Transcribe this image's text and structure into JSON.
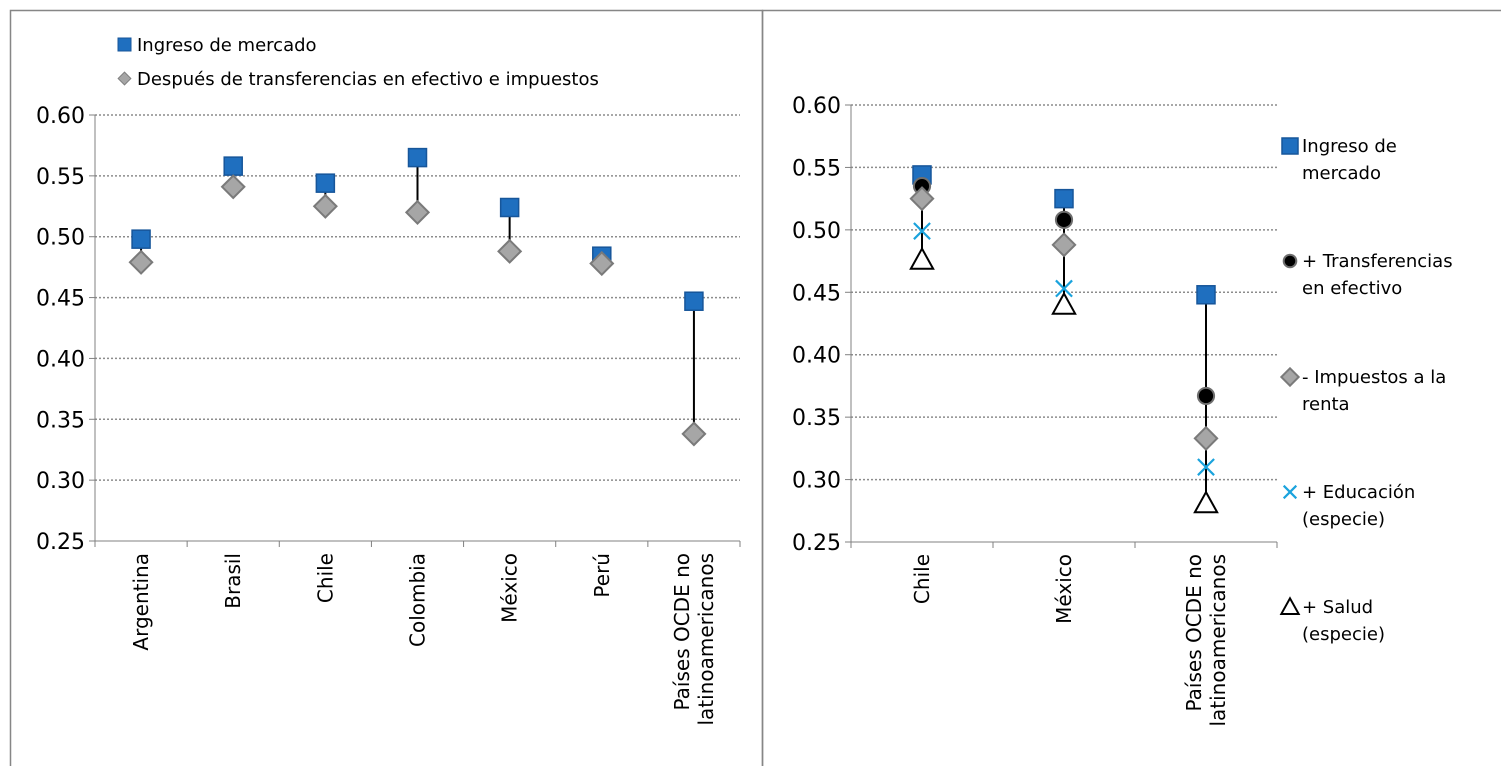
{
  "chart_data": [
    {
      "type": "scatter",
      "title": "",
      "xlabel": "",
      "ylabel": "",
      "ylim": [
        0.25,
        0.6
      ],
      "yticks": [
        "0.60",
        "0.55",
        "0.50",
        "0.45",
        "0.40",
        "0.35",
        "0.30",
        "0.25"
      ],
      "grid": true,
      "legend_position": "top-left",
      "categories": [
        "Argentina",
        "Brasil",
        "Chile",
        "Colombia",
        "México",
        "Perú",
        "Países OCDE no latinoamericanos"
      ],
      "category_lines": [
        [
          "Argentina"
        ],
        [
          "Brasil"
        ],
        [
          "Chile"
        ],
        [
          "Colombia"
        ],
        [
          "México"
        ],
        [
          "Perú"
        ],
        [
          "Países OCDE no",
          "latinoamericanos"
        ]
      ],
      "series": [
        {
          "name": "Ingreso de mercado",
          "marker": "square",
          "color": "#1f6fbf",
          "values": [
            0.498,
            0.558,
            0.544,
            0.565,
            0.524,
            0.484,
            0.447
          ]
        },
        {
          "name": "Después de transferencias en efectivo e impuestos",
          "marker": "diamond",
          "color": "#a6a6a6",
          "values": [
            0.479,
            0.541,
            0.525,
            0.52,
            0.488,
            0.478,
            0.338
          ]
        }
      ]
    },
    {
      "type": "scatter",
      "title": "",
      "xlabel": "",
      "ylabel": "",
      "ylim": [
        0.25,
        0.6
      ],
      "yticks": [
        "0.60",
        "0.55",
        "0.50",
        "0.45",
        "0.40",
        "0.35",
        "0.30",
        "0.25"
      ],
      "grid": true,
      "legend_position": "right",
      "categories": [
        "Chile",
        "México",
        "Países OCDE no latinoamericanos"
      ],
      "category_lines": [
        [
          "Chile"
        ],
        [
          "México"
        ],
        [
          "Países OCDE no",
          "latinoamericanos"
        ]
      ],
      "series": [
        {
          "name": "Ingreso de mercado",
          "legend_lines": [
            "Ingreso de",
            "mercado"
          ],
          "marker": "square",
          "color": "#1f6fbf",
          "values": [
            0.544,
            0.525,
            0.448
          ]
        },
        {
          "name": "+ Transferencias en efectivo",
          "legend_lines": [
            "+ Transferencias",
            "en efectivo"
          ],
          "marker": "circle",
          "color": "#000000",
          "values": [
            0.535,
            0.508,
            0.367
          ]
        },
        {
          "name": "- Impuestos a la renta",
          "legend_lines": [
            "- Impuestos a la",
            "renta"
          ],
          "marker": "diamond",
          "color": "#a6a6a6",
          "values": [
            0.525,
            0.488,
            0.333
          ]
        },
        {
          "name": "+ Educación (especie)",
          "legend_lines": [
            "+ Educación",
            "(especie)"
          ],
          "marker": "x",
          "color": "#1aa3dd",
          "values": [
            0.499,
            0.453,
            0.31
          ]
        },
        {
          "name": "+ Salud (especie)",
          "legend_lines": [
            "+ Salud",
            "(especie)"
          ],
          "marker": "triangle",
          "color": "#000000",
          "values": [
            0.476,
            0.44,
            0.281
          ]
        }
      ]
    }
  ]
}
